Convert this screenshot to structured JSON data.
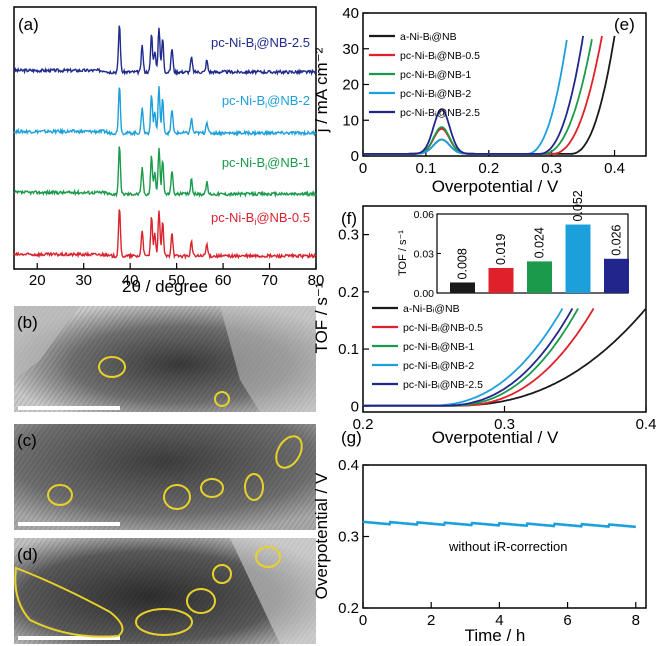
{
  "chart_data": [
    {
      "panel": "(a)",
      "type": "line",
      "xlabel": "2θ / degree",
      "xlim": [
        15,
        80
      ],
      "xticks": [
        20,
        30,
        40,
        50,
        60,
        70,
        80
      ],
      "peaks_2theta": [
        37.7,
        42.6,
        44.6,
        45.3,
        46.2,
        47.0,
        49.0,
        53.2,
        56.5
      ],
      "series": [
        {
          "name": "pc-Ni-BᵢNB-2.5",
          "label": "pc-Ni-B@NB-2.5",
          "sub": "i",
          "color": "#1f2a8c"
        },
        {
          "name": "pc-Ni-Bᵢ@NB-2",
          "label": "pc-Ni-B@NB-2",
          "sub": "i",
          "color": "#1ca0dc"
        },
        {
          "name": "pc-Ni-Bᵢ@NB-1",
          "label": "pc-Ni-B@NB-1",
          "sub": "i",
          "color": "#1a9a4a"
        },
        {
          "name": "pc-Ni-Bᵢ@NB-0.5",
          "label": "pc-Ni-B@NB-0.5",
          "sub": "i",
          "color": "#d9232e"
        }
      ]
    },
    {
      "panel": "(e)",
      "type": "line",
      "xlabel": "Overpotential / V",
      "ylabel": "j / mA cm⁻²",
      "xlim": [
        0,
        0.45
      ],
      "ylim": [
        0,
        40
      ],
      "xticks": [
        "0",
        "0.1",
        "0.2",
        "0.3",
        "0.4"
      ],
      "yticks": [
        "0",
        "10",
        "20",
        "30",
        "40"
      ],
      "series": [
        {
          "name": "a-Ni-Bᵢ@NB",
          "color": "#1a1a1a",
          "onset": 0.33,
          "end": 0.4,
          "peak": 4.0
        },
        {
          "name": "pc-Ni-Bᵢ@NB-0.5",
          "color": "#e0202a",
          "onset": 0.3,
          "end": 0.38,
          "peak": 7.0
        },
        {
          "name": "pc-Ni-Bᵢ@NB-1",
          "color": "#1a9a4a",
          "onset": 0.285,
          "end": 0.365,
          "peak": 7.5
        },
        {
          "name": "pc-Ni-Bᵢ@NB-2",
          "color": "#1ca0dc",
          "onset": 0.26,
          "end": 0.325,
          "peak": 4.0
        },
        {
          "name": "pc-Ni-Bᵢ@NB-2.5",
          "color": "#22268c",
          "onset": 0.28,
          "end": 0.35,
          "peak": 12.5
        }
      ]
    },
    {
      "panel": "(f)",
      "type": "line",
      "xlabel": "Overpotential / V",
      "ylabel": "TOF / s⁻¹",
      "xlim": [
        0.2,
        0.4
      ],
      "ylim": [
        -0.01,
        0.35
      ],
      "xticks": [
        "0.2",
        "0.3",
        "0.4"
      ],
      "yticks": [
        "0",
        "0.1",
        "0.2",
        "0.3"
      ],
      "series": [
        {
          "name": "a-Ni-Bᵢ@NB",
          "color": "#1a1a1a",
          "onset": 0.26,
          "end": 0.4
        },
        {
          "name": "pc-Ni-Bᵢ@NB-0.5",
          "color": "#e0202a",
          "onset": 0.265,
          "end": 0.363
        },
        {
          "name": "pc-Ni-Bᵢ@NB-1",
          "color": "#1a9a4a",
          "onset": 0.26,
          "end": 0.352
        },
        {
          "name": "pc-Ni-Bᵢ@NB-2",
          "color": "#1ca0dc",
          "onset": 0.245,
          "end": 0.341
        },
        {
          "name": "pc-Ni-Bᵢ@NB-2.5",
          "color": "#22268c",
          "onset": 0.255,
          "end": 0.348
        }
      ],
      "inset": {
        "type": "bar",
        "ylabel": "TOF / s⁻¹",
        "ylim": [
          0,
          0.06
        ],
        "yticks": [
          "0.00",
          "0.03",
          "0.06"
        ],
        "values": [
          0.008,
          0.019,
          0.024,
          0.052,
          0.026
        ],
        "labels": [
          "0.008",
          "0.019",
          "0.024",
          "0.052",
          "0.026"
        ],
        "colors": [
          "#1a1a1a",
          "#e0202a",
          "#1a9a4a",
          "#1ca0dc",
          "#22268c"
        ]
      }
    },
    {
      "panel": "(g)",
      "type": "line",
      "xlabel": "Time / h",
      "ylabel": "Overpotential / V",
      "xlim": [
        0,
        8.3
      ],
      "ylim": [
        0.2,
        0.4
      ],
      "xticks": [
        "0",
        "2",
        "4",
        "6",
        "8"
      ],
      "yticks": [
        "0.2",
        "0.3",
        "0.4"
      ],
      "annotation": "without iR-correction",
      "series": [
        {
          "color": "#1ca0dc",
          "start": 0.319,
          "end": 0.315,
          "x_end": 8.0
        }
      ]
    }
  ],
  "panels": {
    "b": "(b)",
    "c": "(c)",
    "d": "(d)"
  }
}
